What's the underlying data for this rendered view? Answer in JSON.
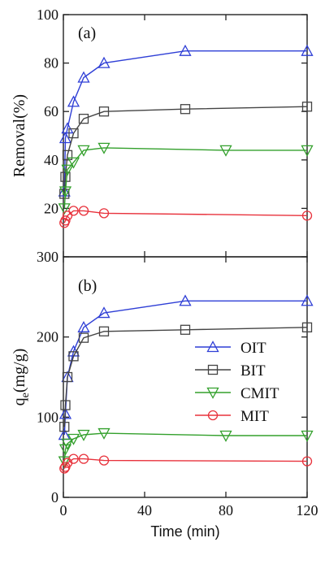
{
  "chart_data": [
    {
      "type": "line",
      "panel_label": "(a)",
      "ylabel": "Removal(%)",
      "xlabel": "",
      "xlim": [
        0,
        120
      ],
      "ylim": [
        0,
        100
      ],
      "yticks": [
        20,
        40,
        60,
        80,
        100
      ],
      "xticks": [],
      "series": [
        {
          "name": "OIT",
          "color": "#2f3fd6",
          "marker": "triangle-up",
          "x": [
            0.5,
            1,
            2,
            5,
            10,
            20,
            60,
            120
          ],
          "y": [
            27,
            49,
            53,
            64,
            74,
            80,
            85,
            85
          ]
        },
        {
          "name": "BIT",
          "color": "#444444",
          "marker": "square",
          "x": [
            0.5,
            1,
            2,
            5,
            10,
            20,
            60,
            120
          ],
          "y": [
            26,
            33,
            42,
            51,
            57,
            60,
            61,
            62
          ]
        },
        {
          "name": "CMIT",
          "color": "#33a02c",
          "marker": "triangle-down",
          "x": [
            0.5,
            1,
            2,
            5,
            10,
            20,
            80,
            120
          ],
          "y": [
            20,
            27,
            36,
            39,
            44,
            45,
            44,
            44
          ]
        },
        {
          "name": "MIT",
          "color": "#e8323c",
          "marker": "circle",
          "x": [
            0.5,
            1,
            2,
            5,
            10,
            20,
            120
          ],
          "y": [
            14,
            15,
            17,
            19,
            19,
            18,
            17
          ]
        }
      ]
    },
    {
      "type": "line",
      "panel_label": "(b)",
      "ylabel": "qe(mg/g)",
      "ylabel_main": "q",
      "ylabel_sub": "e",
      "ylabel_rest": "(mg/g)",
      "xlabel": "Time (min)",
      "xlim": [
        0,
        120
      ],
      "ylim": [
        0,
        300
      ],
      "yticks": [
        0,
        100,
        200,
        300
      ],
      "xticks": [
        0,
        40,
        80,
        120
      ],
      "legend_position": "right",
      "series": [
        {
          "name": "OIT",
          "color": "#2f3fd6",
          "marker": "triangle-up",
          "x": [
            0.5,
            1,
            2,
            5,
            10,
            20,
            60,
            120
          ],
          "y": [
            78,
            104,
            150,
            182,
            212,
            230,
            245,
            245
          ]
        },
        {
          "name": "BIT",
          "color": "#444444",
          "marker": "square",
          "x": [
            0.5,
            1,
            2,
            5,
            10,
            20,
            60,
            120
          ],
          "y": [
            88,
            115,
            150,
            176,
            199,
            207,
            209,
            212
          ]
        },
        {
          "name": "CMIT",
          "color": "#33a02c",
          "marker": "triangle-down",
          "x": [
            0.5,
            1,
            2,
            5,
            10,
            20,
            80,
            120
          ],
          "y": [
            45,
            60,
            67,
            73,
            78,
            80,
            77,
            77
          ]
        },
        {
          "name": "MIT",
          "color": "#e8323c",
          "marker": "circle",
          "x": [
            0.5,
            1,
            2,
            5,
            10,
            20,
            120
          ],
          "y": [
            36,
            38,
            43,
            48,
            48,
            46,
            45
          ]
        }
      ]
    }
  ]
}
